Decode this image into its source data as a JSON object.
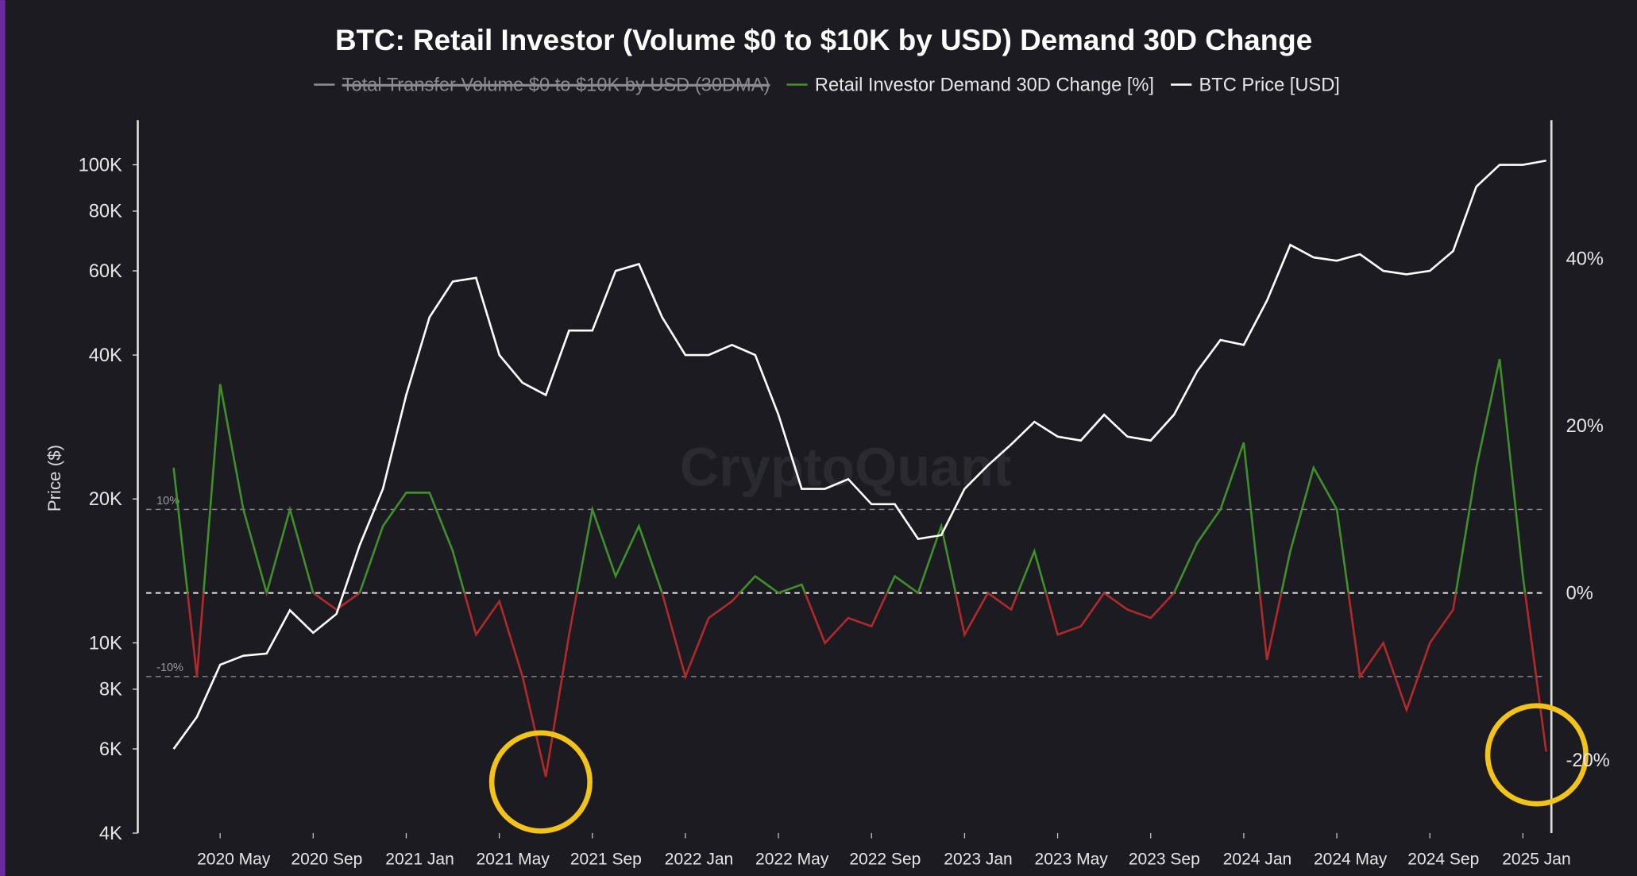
{
  "chart_data": {
    "type": "line",
    "title": "BTC: Retail Investor (Volume $0 to $10K by USD) Demand 30D Change",
    "watermark": "CryptoQuant",
    "hidden_series": [
      {
        "name": "Total Transfer Volume  $0 to $10K by USD (30DMA)",
        "color": "#8a8a8f"
      }
    ],
    "y_label": "Price ($)",
    "x": [
      "2020-03",
      "2020-04",
      "2020-05",
      "2020-06",
      "2020-07",
      "2020-08",
      "2020-09",
      "2020-10",
      "2020-11",
      "2020-12",
      "2021-01",
      "2021-02",
      "2021-03",
      "2021-04",
      "2021-05",
      "2021-06",
      "2021-07",
      "2021-08",
      "2021-09",
      "2021-10",
      "2021-11",
      "2021-12",
      "2022-01",
      "2022-02",
      "2022-03",
      "2022-04",
      "2022-05",
      "2022-06",
      "2022-07",
      "2022-08",
      "2022-09",
      "2022-10",
      "2022-11",
      "2022-12",
      "2023-01",
      "2023-02",
      "2023-03",
      "2023-04",
      "2023-05",
      "2023-06",
      "2023-07",
      "2023-08",
      "2023-09",
      "2023-10",
      "2023-11",
      "2023-12",
      "2024-01",
      "2024-02",
      "2024-03",
      "2024-04",
      "2024-05",
      "2024-06",
      "2024-07",
      "2024-08",
      "2024-09",
      "2024-10",
      "2024-11",
      "2024-12",
      "2025-01",
      "2025-02"
    ],
    "xlim": [
      "2020-02",
      "2025-02"
    ],
    "xticks": [
      {
        "value": "2020-05",
        "label": "2020 May"
      },
      {
        "value": "2020-09",
        "label": "2020 Sep"
      },
      {
        "value": "2021-01",
        "label": "2021 Jan"
      },
      {
        "value": "2021-05",
        "label": "2021 May"
      },
      {
        "value": "2021-09",
        "label": "2021 Sep"
      },
      {
        "value": "2022-01",
        "label": "2022 Jan"
      },
      {
        "value": "2022-05",
        "label": "2022 May"
      },
      {
        "value": "2022-09",
        "label": "2022 Sep"
      },
      {
        "value": "2023-01",
        "label": "2023 Jan"
      },
      {
        "value": "2023-05",
        "label": "2023 May"
      },
      {
        "value": "2023-09",
        "label": "2023 Sep"
      },
      {
        "value": "2024-01",
        "label": "2024 Jan"
      },
      {
        "value": "2024-05",
        "label": "2024 May"
      },
      {
        "value": "2024-09",
        "label": "2024 Sep"
      },
      {
        "value": "2025-01",
        "label": "2025 Jan"
      }
    ],
    "ylim": [
      4000,
      124000
    ],
    "log_y": true,
    "yticks": [
      {
        "value": 4000,
        "label": "4K"
      },
      {
        "value": 6000,
        "label": "6K"
      },
      {
        "value": 8000,
        "label": "8K"
      },
      {
        "value": 10000,
        "label": "10K"
      },
      {
        "value": 20000,
        "label": "20K"
      },
      {
        "value": 40000,
        "label": "40K"
      },
      {
        "value": 60000,
        "label": "60K"
      },
      {
        "value": 80000,
        "label": "80K"
      },
      {
        "value": 100000,
        "label": "100K"
      }
    ],
    "y2lim": [
      -28.75,
      56.6
    ],
    "y2ticks": [
      {
        "value": -20,
        "label": "-20%"
      },
      {
        "value": 0,
        "label": "0%"
      },
      {
        "value": 20,
        "label": "20%"
      },
      {
        "value": 40,
        "label": "40%"
      }
    ],
    "ref_lines": [
      {
        "value": 10,
        "label": "10%"
      },
      {
        "value": -10,
        "label": "-10%"
      }
    ],
    "series": [
      {
        "name": "Retail Investor Demand 30D Change [%]",
        "color": "#3f8f2a",
        "color_negative": "#b02a2a",
        "axis": "y2",
        "values": [
          15,
          -10,
          25,
          10,
          0,
          10,
          0,
          -2,
          0,
          8,
          12,
          12,
          5,
          -5,
          -1,
          -10,
          -22,
          -5,
          10,
          2,
          8,
          0,
          -10,
          -3,
          -1,
          2,
          0,
          1,
          -6,
          -3,
          -4,
          2,
          0,
          8,
          -5,
          0,
          -2,
          5,
          -5,
          -4,
          0,
          -2,
          -3,
          0,
          6,
          10,
          18,
          -8,
          5,
          15,
          10,
          -10,
          -6,
          -14,
          -6,
          -2,
          15,
          28,
          2,
          -19
        ]
      },
      {
        "name": "BTC Price [USD]",
        "color": "#ffffff",
        "values": [
          6000,
          7000,
          9000,
          9400,
          9500,
          11700,
          10500,
          11500,
          16000,
          21000,
          33000,
          48000,
          57000,
          58000,
          40000,
          35000,
          33000,
          45000,
          45000,
          60000,
          62000,
          48000,
          40000,
          40000,
          42000,
          40000,
          30000,
          21000,
          21000,
          22000,
          19500,
          19500,
          16500,
          16800,
          21000,
          23500,
          26000,
          29000,
          27000,
          26500,
          30000,
          27000,
          26500,
          30000,
          37000,
          43000,
          42000,
          52000,
          68000,
          64000,
          63000,
          65000,
          60000,
          59000,
          60000,
          66000,
          90000,
          100000,
          100000,
          102000
        ]
      }
    ]
  }
}
